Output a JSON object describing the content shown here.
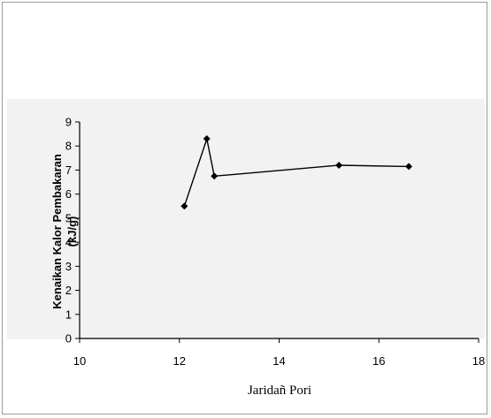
{
  "chart_data": {
    "type": "line",
    "title": "",
    "xlabel": "Jaridañ Pori",
    "ylabel_lines": [
      "Kenaikan Kalor Pembakaran",
      "(kJ/g)"
    ],
    "xlim": [
      10,
      18
    ],
    "ylim": [
      0,
      9
    ],
    "x_ticks": [
      10,
      12,
      14,
      16,
      18
    ],
    "y_ticks": [
      0,
      1,
      2,
      3,
      4,
      5,
      6,
      7,
      8,
      9
    ],
    "grid": false,
    "legend": "none",
    "line_color": "#000000",
    "series": [
      {
        "x": [
          12.1,
          12.55,
          12.7,
          15.2,
          16.6
        ],
        "y": [
          5.5,
          8.3,
          6.75,
          7.2,
          7.15
        ]
      }
    ]
  }
}
